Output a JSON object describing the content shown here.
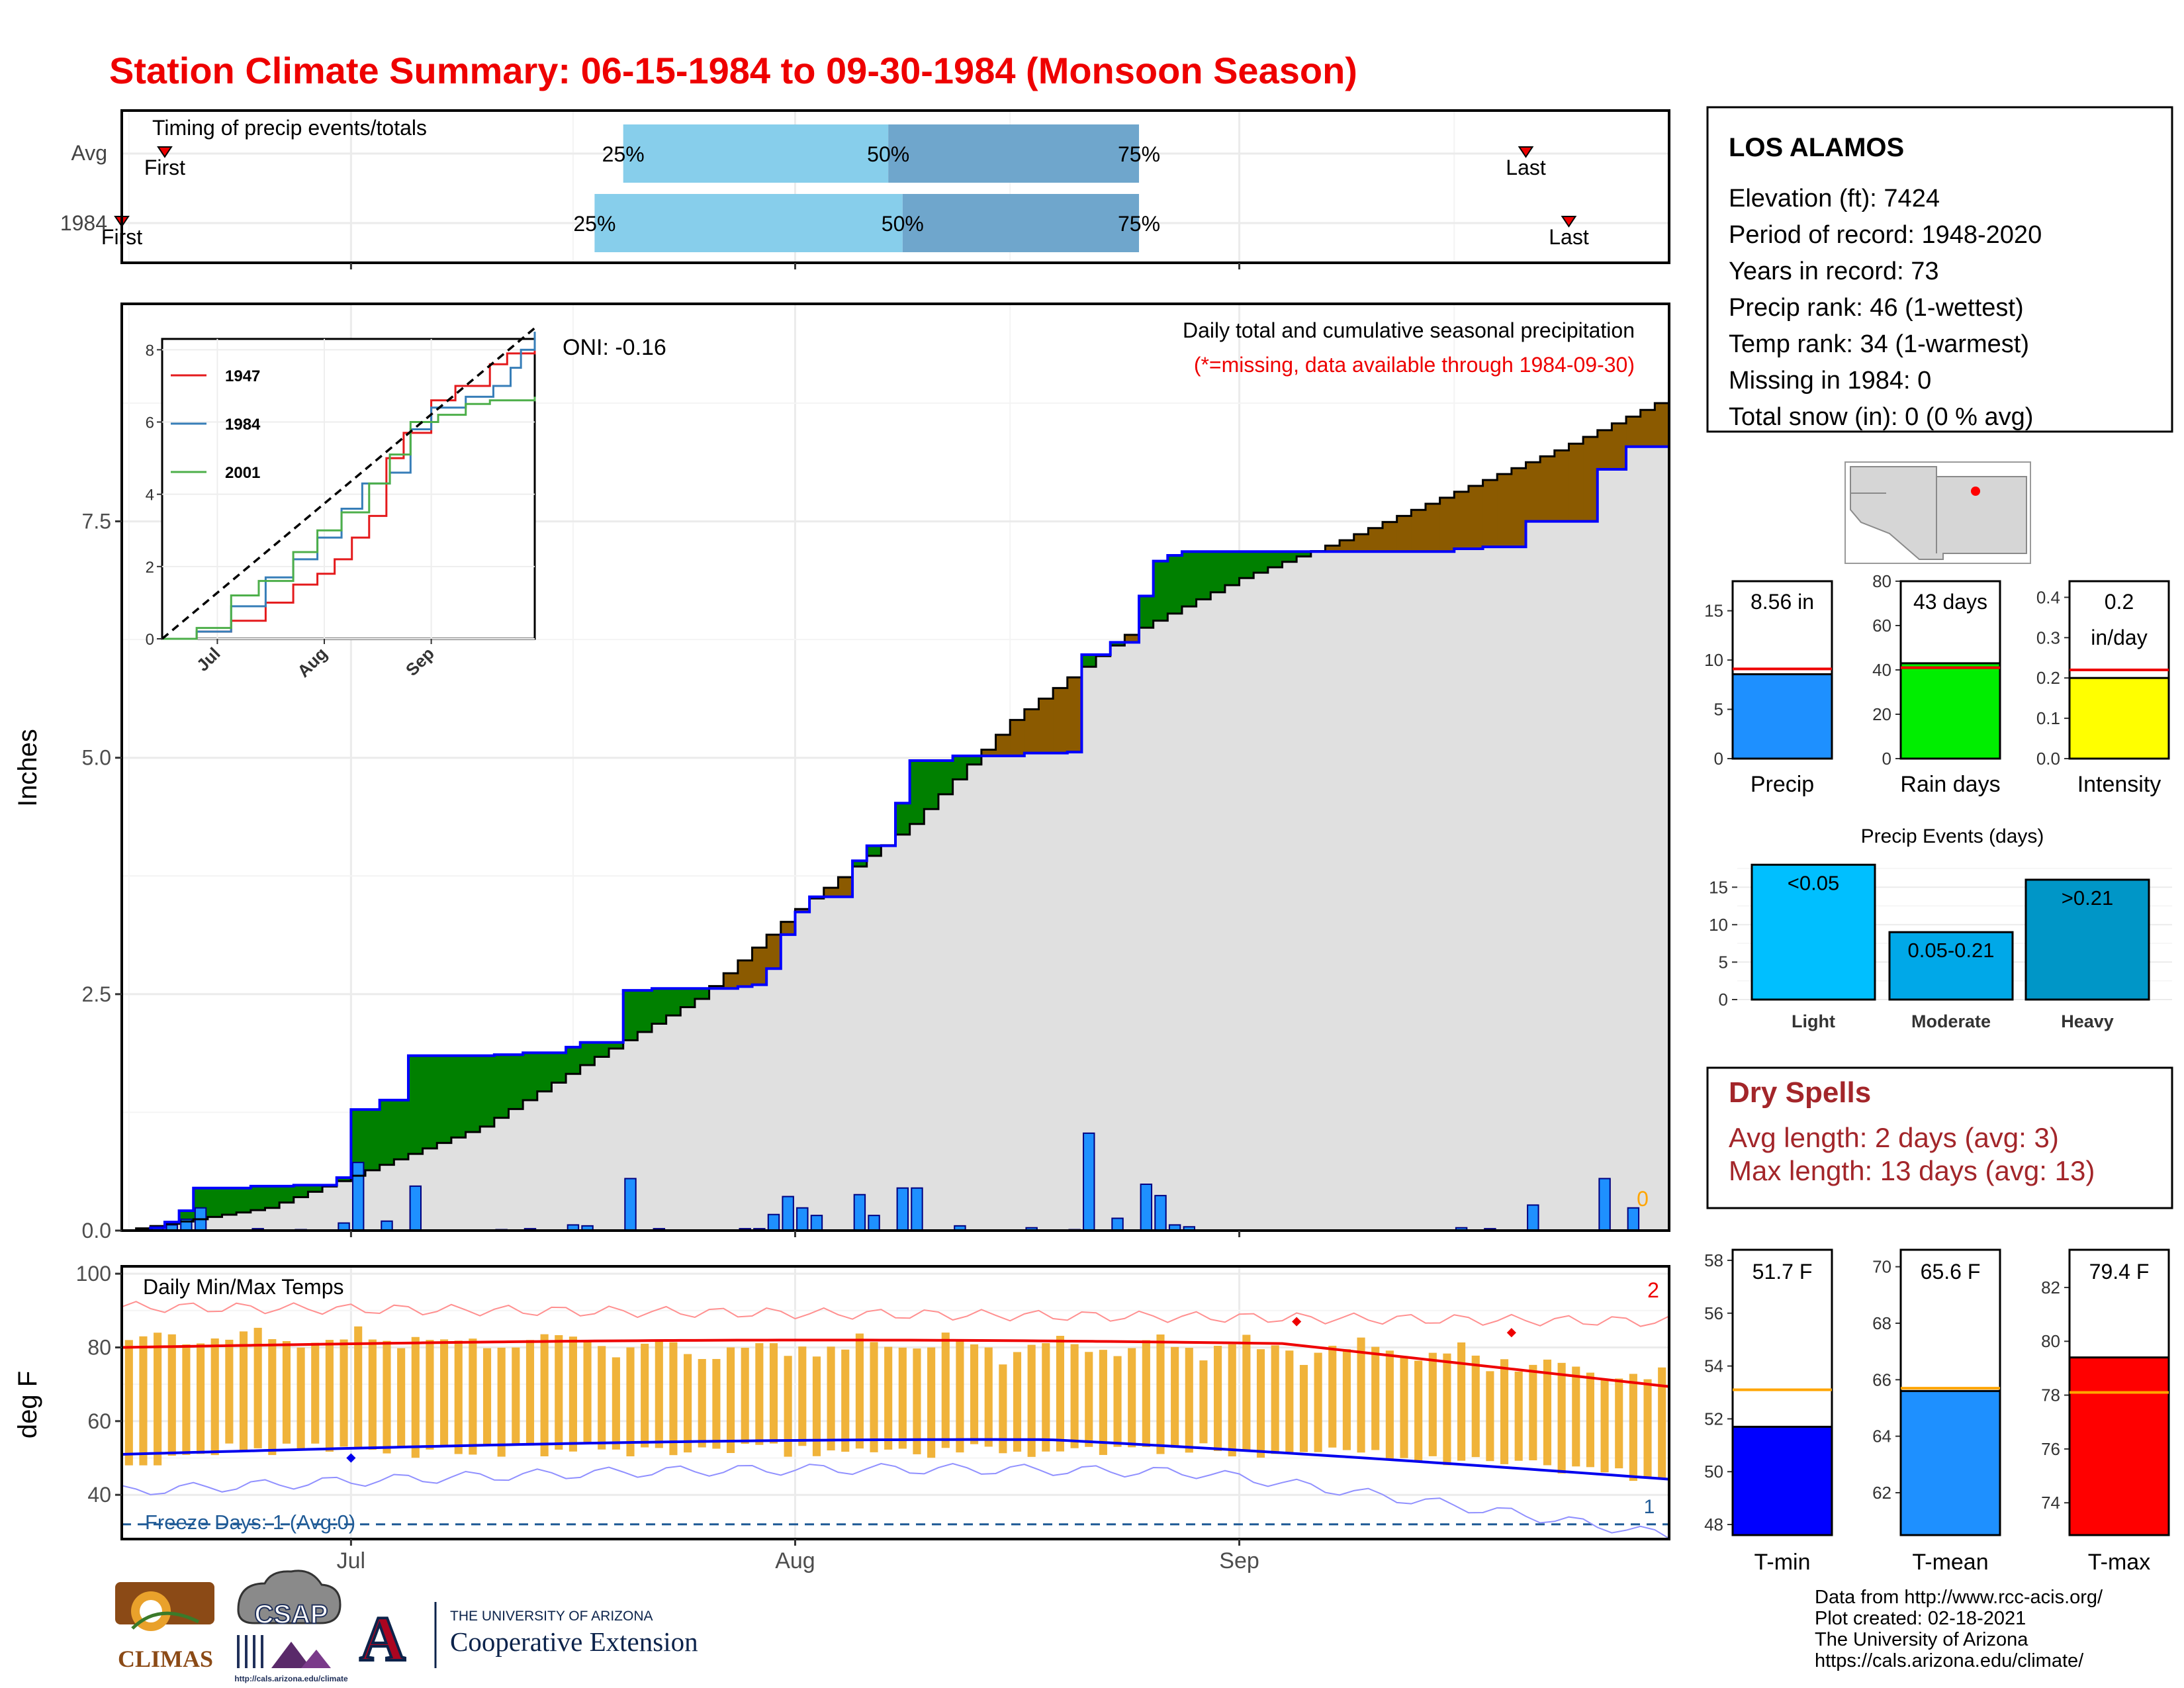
{
  "title": "Station Climate Summary: 06-15-1984 to 09-30-1984 (Monsoon Season)",
  "colors": {
    "title": "#ee0000",
    "q1": "#87ceeb",
    "q2": "#6fa6cc",
    "above_avg": "#008000",
    "below_avg": "#8b5a00",
    "avg_line": "#0000ff",
    "daily_bar": "#1e90ff",
    "gray_fill": "#e0e0e0"
  },
  "timing": {
    "label": "Timing of precip events/totals",
    "rows": [
      {
        "name": "Avg",
        "first_label": "First",
        "last_label": "Last",
        "q25": "25%",
        "q50": "50%",
        "q75": "75%",
        "first_day": 3,
        "q25_day": 35,
        "q50_day": 53.5,
        "q75_day": 71,
        "last_day": 98
      },
      {
        "name": "1984",
        "first_label": "First",
        "last_label": "Last",
        "q25": "25%",
        "q50": "50%",
        "q75": "75%",
        "first_day": 0,
        "q25_day": 33,
        "q50_day": 54.5,
        "q75_day": 71,
        "last_day": 101
      }
    ]
  },
  "main": {
    "ylabel": "Inches",
    "yticks": [
      "0.0",
      "2.5",
      "5.0",
      "7.5"
    ],
    "xticks": [
      "Jul",
      "Aug",
      "Sep"
    ],
    "caption1": "Daily total and cumulative seasonal precipitation",
    "caption2": "(*=missing, data available through 1984-09-30)",
    "oni": "ONI: -0.16",
    "missing_count": "0"
  },
  "inset": {
    "yticks": [
      "0",
      "2",
      "4",
      "6",
      "8"
    ],
    "xticks": [
      "Jul",
      "Aug",
      "Sep"
    ],
    "legend": [
      {
        "name": "1947",
        "color": "#e41a1c"
      },
      {
        "name": "1984",
        "color": "#377eb8"
      },
      {
        "name": "2001",
        "color": "#4daf4a"
      }
    ]
  },
  "temps": {
    "label": "Daily Min/Max Temps",
    "ylabel": "deg F",
    "yticks": [
      "40",
      "60",
      "80",
      "100"
    ],
    "xticks": [
      "Jul",
      "Aug",
      "Sep"
    ],
    "freeze_label": "Freeze Days: 1 (Avg:0)",
    "record_high_count": "2",
    "record_low_count": "1"
  },
  "station": {
    "name": "LOS ALAMOS",
    "lines": [
      "Elevation (ft): 7424",
      "Period of record: 1948-2020",
      "Years in record: 73",
      "Precip rank: 46 (1-wettest)",
      "Temp rank: 34 (1-warmest)",
      "Missing in 1984: 0",
      "Total snow (in): 0 (0 % avg)"
    ]
  },
  "summary_bars": [
    {
      "label": "Precip",
      "value_text": "8.56 in",
      "value": 8.56,
      "avg": 9.1,
      "max": 18,
      "ticks": [
        "0",
        "5",
        "10",
        "15"
      ],
      "color": "#1e90ff"
    },
    {
      "label": "Rain days",
      "value_text": "43 days",
      "value": 43,
      "avg": 41,
      "max": 80,
      "ticks": [
        "0",
        "20",
        "40",
        "60",
        "80"
      ],
      "color": "#00ee00"
    },
    {
      "label": "Intensity",
      "value_text": "0.2 in/day",
      "value": 0.2,
      "avg": 0.22,
      "max": 0.44,
      "ticks": [
        "0.0",
        "0.1",
        "0.2",
        "0.3",
        "0.4"
      ],
      "color": "#ffff00"
    }
  ],
  "events": {
    "title": "Precip Events (days)",
    "ticks": [
      "0",
      "5",
      "10",
      "15"
    ],
    "bars": [
      {
        "label": "Light",
        "range": "<0.05",
        "value": 18,
        "color": "#00bfff"
      },
      {
        "label": "Moderate",
        "range": "0.05-0.21",
        "value": 9,
        "color": "#00a8e8"
      },
      {
        "label": "Heavy",
        "range": ">0.21",
        "value": 16,
        "color": "#0096c7"
      }
    ]
  },
  "dry_spells": {
    "title": "Dry Spells",
    "avg": "Avg length: 2 days (avg: 3)",
    "max": "Max length: 13 days (avg: 13)"
  },
  "temp_bars": [
    {
      "label": "T-min",
      "value_text": "51.7 F",
      "value": 51.7,
      "avg": 53.1,
      "min": 47.6,
      "max": 58.4,
      "ticks": [
        "48",
        "50",
        "52",
        "54",
        "56",
        "58"
      ],
      "color": "#0000ff"
    },
    {
      "label": "T-mean",
      "value_text": "65.6 F",
      "value": 65.6,
      "avg": 65.7,
      "min": 60.5,
      "max": 70.6,
      "ticks": [
        "62",
        "64",
        "66",
        "68",
        "70"
      ],
      "color": "#1e90ff"
    },
    {
      "label": "T-max",
      "value_text": "79.4 F",
      "value": 79.4,
      "avg": 78.1,
      "min": 72.8,
      "max": 83.4,
      "ticks": [
        "74",
        "76",
        "78",
        "80",
        "82"
      ],
      "color": "#ff0000"
    }
  ],
  "credits": [
    "Data from http://www.rcc-acis.org/",
    "Plot created: 02-18-2021",
    "The University of Arizona",
    "https://cals.arizona.edu/climate/"
  ],
  "logos": {
    "climas": "CLIMAS",
    "csap": "CSAP",
    "csap_url": "http://cals.arizona.edu/climate",
    "ua_line1": "THE UNIVERSITY OF ARIZONA",
    "ua_line2": "Cooperative Extension",
    "ua_letter": "A"
  }
}
